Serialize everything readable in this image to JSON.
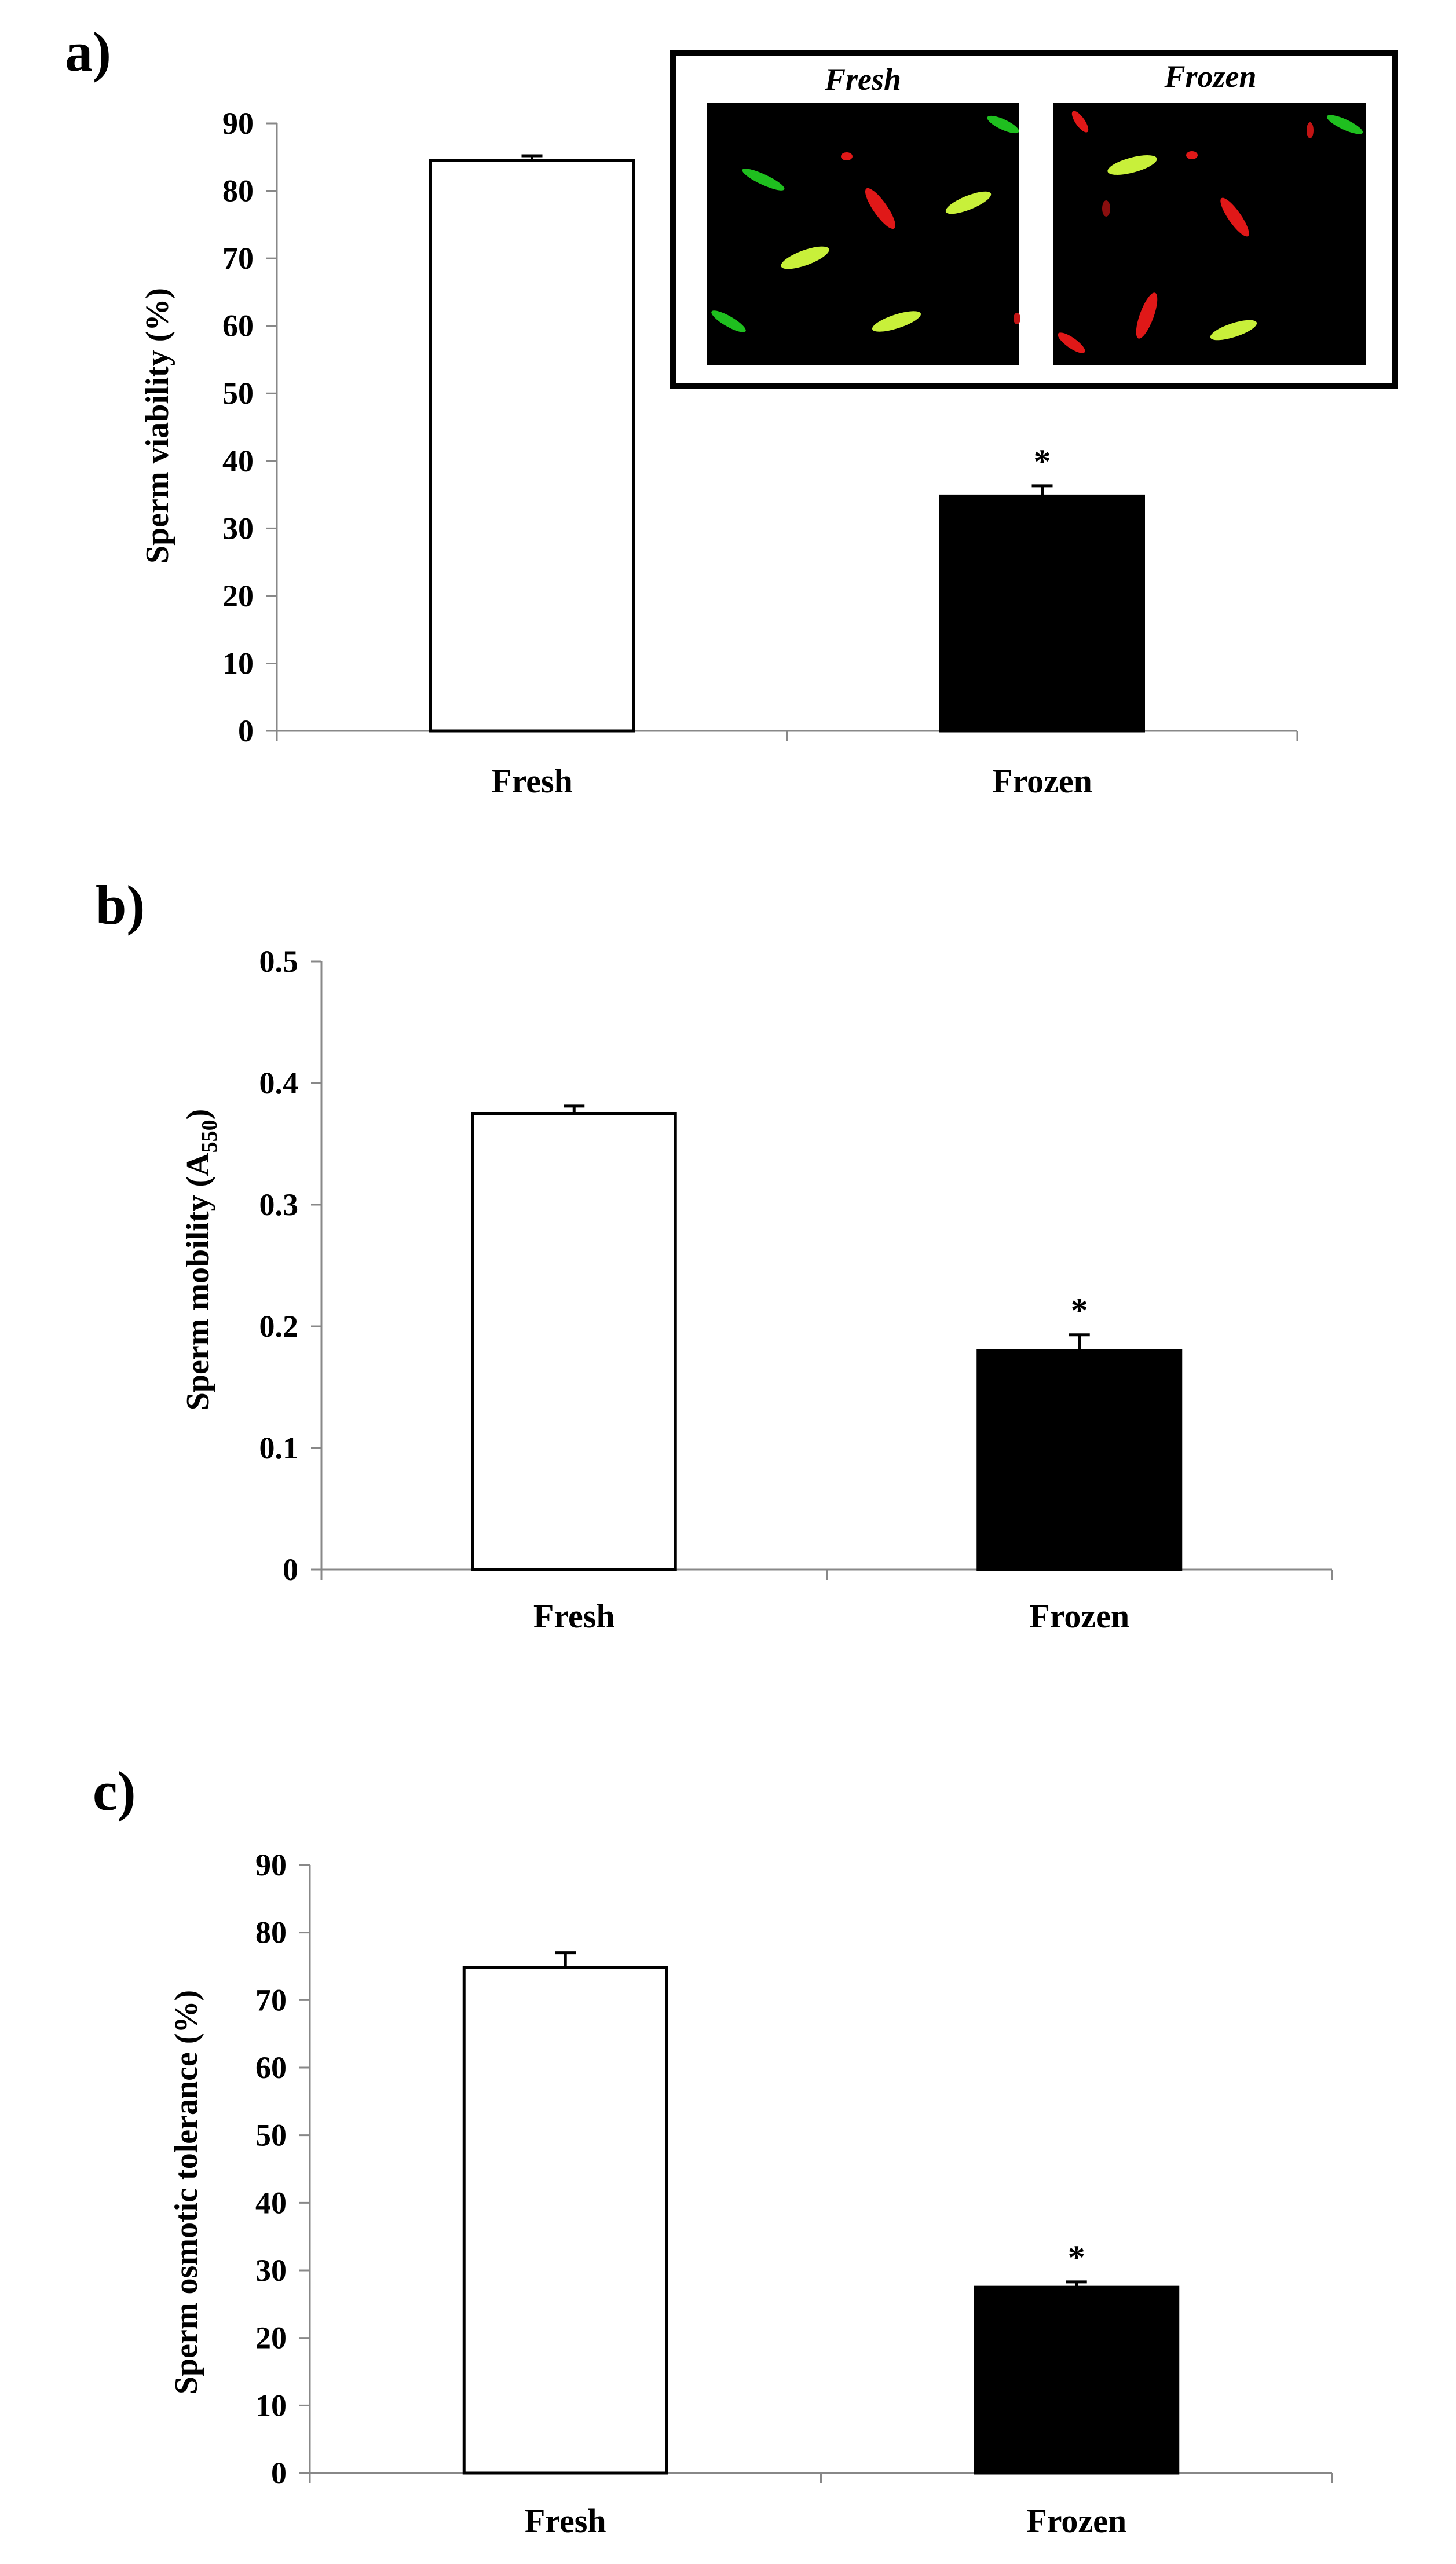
{
  "chart_data": [
    {
      "type": "bar",
      "panel_label": "a)",
      "categories": [
        "Fresh",
        "Frozen"
      ],
      "values": [
        84.5,
        34.8
      ],
      "errors": [
        0.7,
        1.5
      ],
      "significance": [
        "",
        "*"
      ],
      "bar_colors": [
        "#ffffff",
        "#000000"
      ],
      "ylabel": "Sperm viability (%)",
      "ylim": [
        0,
        90
      ],
      "yticks": [
        0,
        10,
        20,
        30,
        40,
        50,
        60,
        70,
        80,
        90
      ],
      "ytick_labels": [
        "0",
        "10",
        "20",
        "30",
        "40",
        "50",
        "60",
        "70",
        "80",
        "90"
      ],
      "grid": false,
      "inset": {
        "titles": [
          "Fresh",
          "Frozen"
        ],
        "description_colors": {
          "live": "#22c422",
          "dead": "#e01818",
          "background": "#000000"
        }
      }
    },
    {
      "type": "bar",
      "panel_label": "b)",
      "categories": [
        "Fresh",
        "Frozen"
      ],
      "values": [
        0.375,
        0.18
      ],
      "errors": [
        0.006,
        0.013
      ],
      "significance": [
        "",
        "*"
      ],
      "bar_colors": [
        "#ffffff",
        "#000000"
      ],
      "ylabel_main": "Sperm mobility (A",
      "ylabel_sub": "550",
      "ylabel_end": ")",
      "ylim": [
        0,
        0.5
      ],
      "yticks": [
        0,
        0.1,
        0.2,
        0.3,
        0.4,
        0.5
      ],
      "ytick_labels": [
        "0",
        "0.1",
        "0.2",
        "0.3",
        "0.4",
        "0.5"
      ],
      "grid": false
    },
    {
      "type": "bar",
      "panel_label": "c)",
      "categories": [
        "Fresh",
        "Frozen"
      ],
      "values": [
        74.8,
        27.5
      ],
      "errors": [
        2.2,
        0.8
      ],
      "significance": [
        "",
        "*"
      ],
      "bar_colors": [
        "#ffffff",
        "#000000"
      ],
      "ylabel": "Sperm osmotic tolerance (%)",
      "ylim": [
        0,
        90
      ],
      "yticks": [
        0,
        10,
        20,
        30,
        40,
        50,
        60,
        70,
        80,
        90
      ],
      "ytick_labels": [
        "0",
        "10",
        "20",
        "30",
        "40",
        "50",
        "60",
        "70",
        "80",
        "90"
      ],
      "grid": false
    }
  ]
}
